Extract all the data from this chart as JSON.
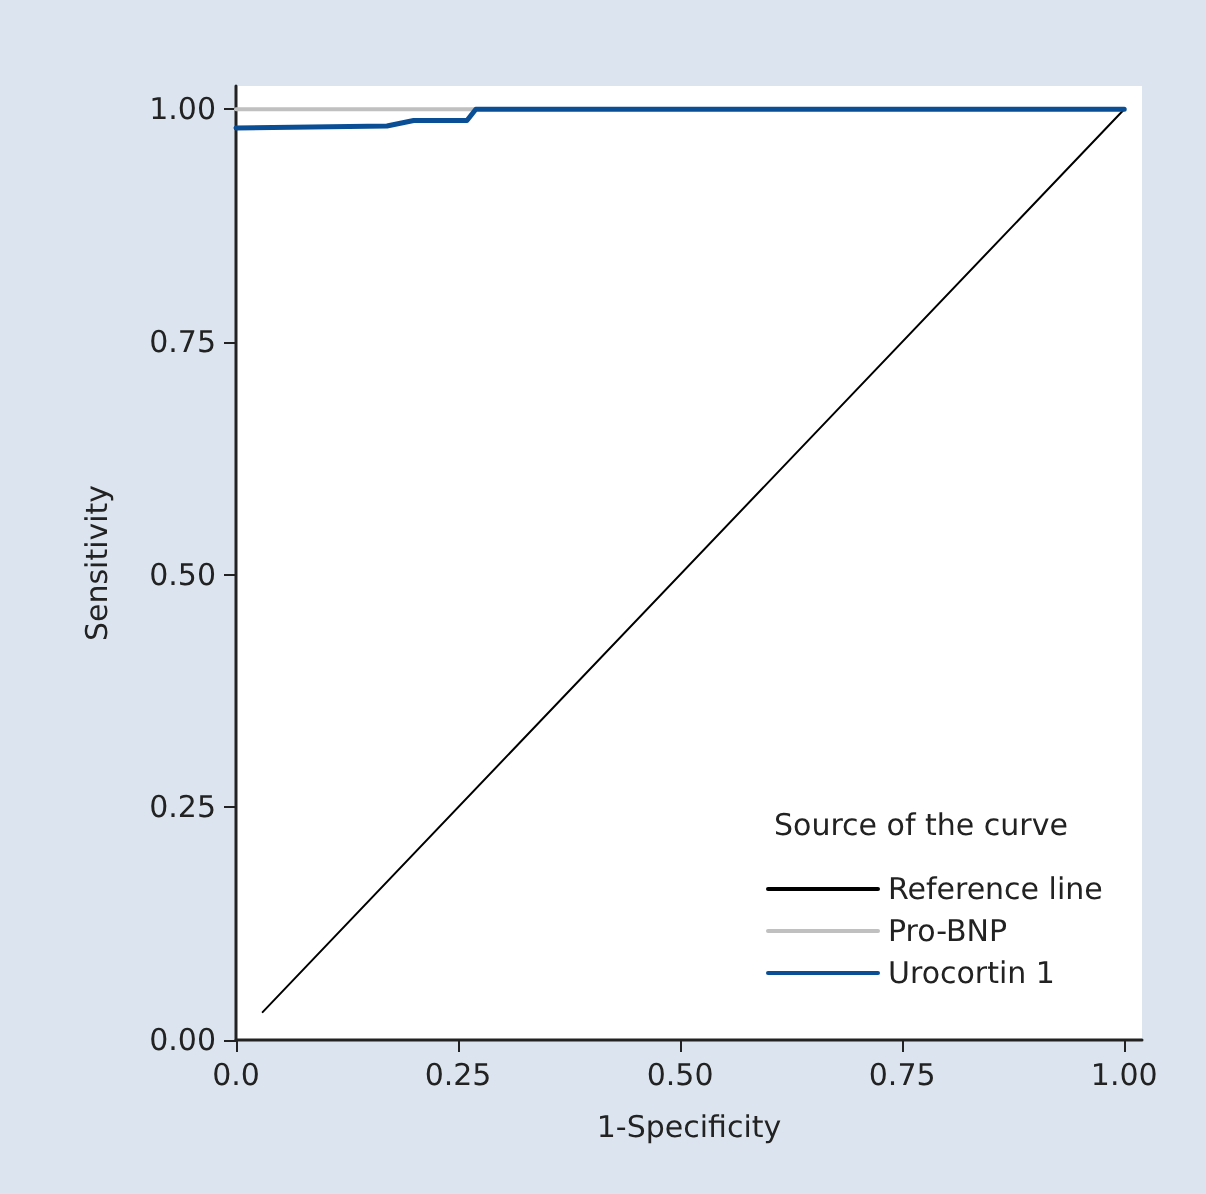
{
  "chart_data": {
    "type": "line",
    "xlabel": "1-Specificity",
    "ylabel": "Sensitivity",
    "legend_title": "Source of the curve",
    "legend": "bottom right",
    "grid": false,
    "marker": "none",
    "line_style": "solid",
    "xlim": [
      0,
      1.02
    ],
    "ylim": [
      0,
      1.025
    ],
    "xticks": [
      {
        "value": 0,
        "label": "0.0"
      },
      0.25,
      {
        "value": 0.5,
        "label": "0.50"
      },
      0.75,
      {
        "value": 1,
        "label": "1.00"
      }
    ],
    "yticks": [
      {
        "value": 0,
        "label": "0.00"
      },
      0.25,
      {
        "value": 0.5,
        "label": "0.50"
      },
      0.75,
      {
        "value": 1,
        "label": "1.00"
      }
    ],
    "series": [
      {
        "name": "Reference line",
        "color": "#000000",
        "x": [
          0.03,
          1
        ],
        "values": [
          0.03,
          1
        ]
      },
      {
        "name": "Pro-BNP",
        "color": "#c0c0c0",
        "x": [
          0,
          0.27
        ],
        "values": [
          1,
          1
        ]
      },
      {
        "name": "Urocortin 1",
        "color": "#0a4f96",
        "x": [
          0,
          0.17,
          0.2,
          0.26,
          0.27,
          1
        ],
        "values": [
          0.98,
          0.982,
          0.988,
          0.988,
          1,
          1
        ]
      }
    ]
  }
}
